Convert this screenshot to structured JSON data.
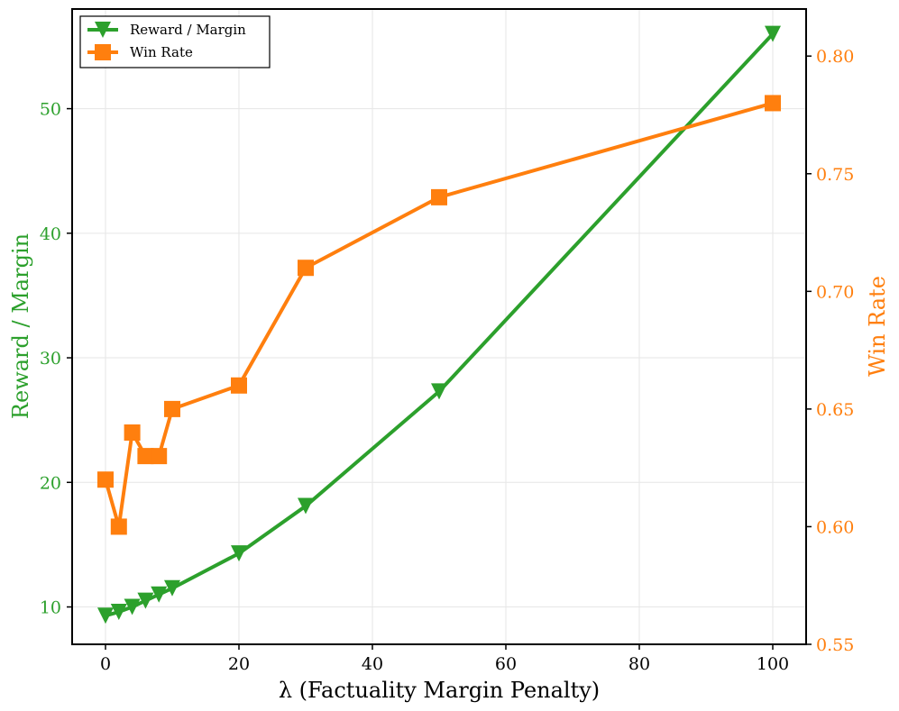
{
  "chart_data": {
    "type": "line",
    "title": "",
    "xlabel": "λ (Factuality Margin Penalty)",
    "ylabel_left": "Reward / Margin",
    "ylabel_right": "Win Rate",
    "xlim": [
      -5,
      105
    ],
    "ylim_left": [
      7,
      58
    ],
    "ylim_right": [
      0.55,
      0.82
    ],
    "xticks": [
      0,
      20,
      40,
      60,
      80,
      100
    ],
    "yticks_left": [
      10,
      20,
      30,
      40,
      50
    ],
    "yticks_right": [
      0.55,
      0.6,
      0.65,
      0.7,
      0.75,
      0.8
    ],
    "x_tick_labels": [
      "0",
      "20",
      "40",
      "60",
      "80",
      "100"
    ],
    "y_left_tick_labels": [
      "10",
      "20",
      "30",
      "40",
      "50"
    ],
    "y_right_tick_labels": [
      "0.55",
      "0.60",
      "0.65",
      "0.70",
      "0.75",
      "0.80"
    ],
    "grid": true,
    "legend_location": "top-left",
    "series": [
      {
        "name": "Reward / Margin",
        "axis": "left",
        "color": "#2ca02c",
        "marker": "triangle-down",
        "x": [
          0,
          2,
          4,
          6,
          8,
          10,
          20,
          30,
          50,
          100
        ],
        "values": [
          9.3,
          9.6,
          10.0,
          10.5,
          11.0,
          11.5,
          14.3,
          18.1,
          27.3,
          56.0
        ]
      },
      {
        "name": "Win Rate",
        "axis": "right",
        "color": "#ff7f0e",
        "marker": "square",
        "x": [
          0,
          2,
          4,
          6,
          8,
          10,
          20,
          30,
          50,
          100
        ],
        "values": [
          0.62,
          0.6,
          0.64,
          0.63,
          0.63,
          0.65,
          0.66,
          0.71,
          0.74,
          0.78
        ]
      }
    ]
  }
}
